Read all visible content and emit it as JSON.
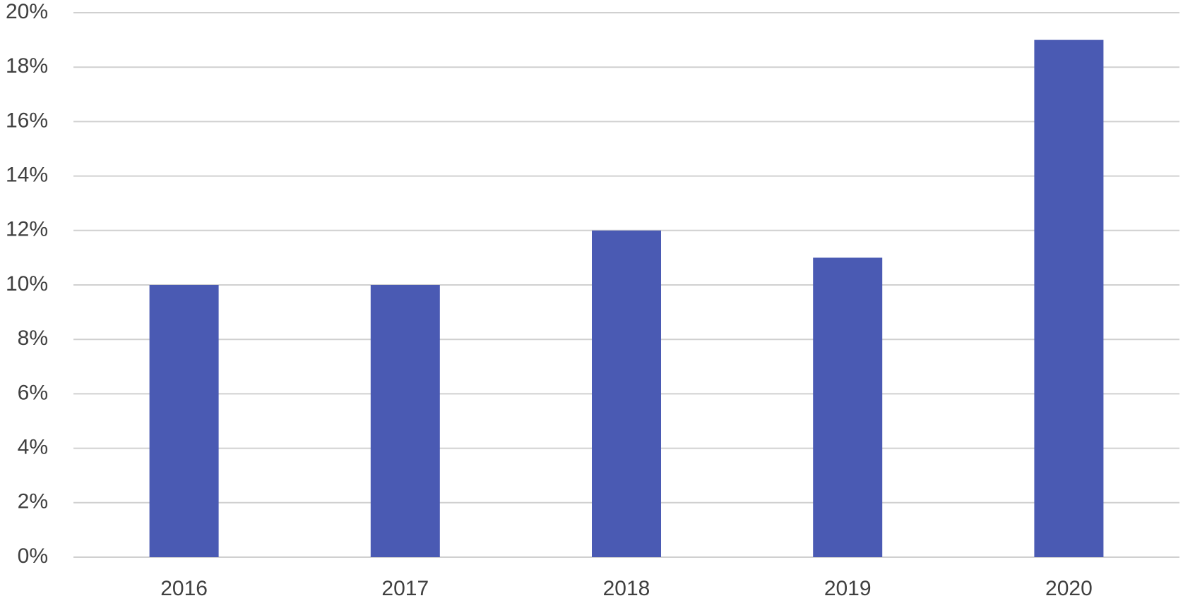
{
  "chart_data": {
    "type": "bar",
    "categories": [
      "2016",
      "2017",
      "2018",
      "2019",
      "2020"
    ],
    "values": [
      10,
      10,
      12,
      11,
      19
    ],
    "color": "#4a5ab3",
    "ylim": [
      0,
      20
    ],
    "yticks": [
      {
        "value": 0,
        "label": "0%"
      },
      {
        "value": 2,
        "label": "2%"
      },
      {
        "value": 4,
        "label": "4%"
      },
      {
        "value": 6,
        "label": "6%"
      },
      {
        "value": 8,
        "label": "8%"
      },
      {
        "value": 10,
        "label": "10%"
      },
      {
        "value": 12,
        "label": "12%"
      },
      {
        "value": 14,
        "label": "14%"
      },
      {
        "value": 16,
        "label": "16%"
      },
      {
        "value": 18,
        "label": "18%"
      },
      {
        "value": 20,
        "label": "20%"
      }
    ],
    "grid": true
  }
}
